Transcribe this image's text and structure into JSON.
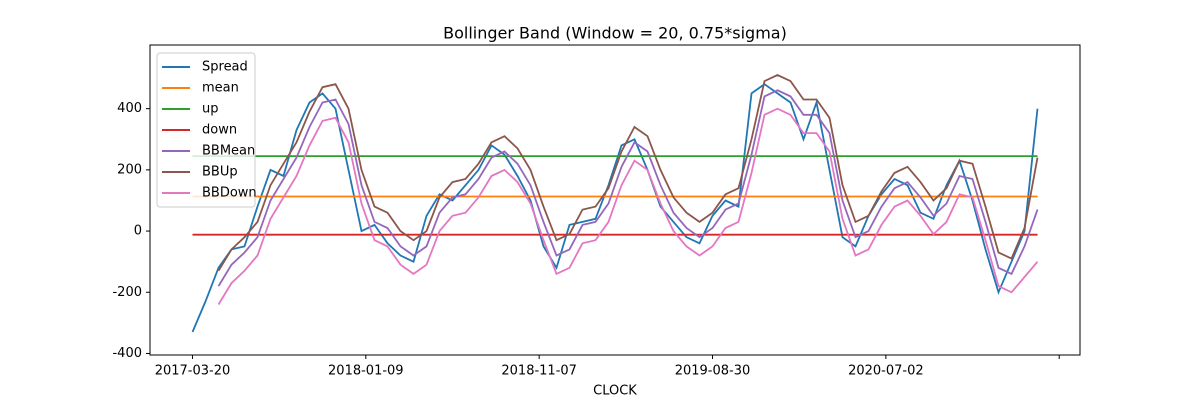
{
  "chart_data": {
    "type": "line",
    "title": "Bollinger Band (Window = 20, 0.75*sigma)",
    "xlabel": "CLOCK",
    "x": [
      0,
      15,
      30,
      45,
      60,
      75,
      90,
      105,
      120,
      135,
      150,
      165,
      180,
      195,
      210,
      225,
      240,
      255,
      270,
      285,
      300,
      315,
      330,
      345,
      360,
      375,
      390,
      405,
      420,
      435,
      450,
      465,
      480,
      495,
      510,
      525,
      540,
      555,
      570,
      585,
      600,
      615,
      630,
      645,
      660,
      675,
      690,
      705,
      720,
      735,
      750,
      765,
      780,
      795,
      810,
      825,
      840,
      855,
      870,
      885,
      900,
      915,
      930,
      945,
      960,
      975
    ],
    "xlim": [
      -49,
      1024
    ],
    "xticks": [
      {
        "value": 0,
        "label": "2017-03-20"
      },
      {
        "value": 200,
        "label": "2018-01-09"
      },
      {
        "value": 400,
        "label": "2018-11-07"
      },
      {
        "value": 600,
        "label": "2019-08-30"
      },
      {
        "value": 800,
        "label": "2020-07-02"
      },
      {
        "value": 1000,
        "label": null
      }
    ],
    "ylim": [
      -405,
      608
    ],
    "yticks": [
      -400,
      -200,
      0,
      200,
      400
    ],
    "legend": "upper left",
    "series": [
      {
        "name": "Spread",
        "color": "#1f77b4",
        "values": [
          -330,
          -230,
          -120,
          -60,
          -50,
          80,
          200,
          180,
          330,
          420,
          450,
          400,
          200,
          0,
          20,
          -40,
          -80,
          -100,
          50,
          120,
          100,
          150,
          200,
          280,
          250,
          180,
          100,
          -50,
          -120,
          20,
          30,
          40,
          150,
          280,
          300,
          200,
          80,
          30,
          -20,
          -40,
          50,
          100,
          80,
          450,
          480,
          450,
          420,
          300,
          420,
          200,
          -20,
          -50,
          50,
          120,
          170,
          150,
          60,
          40,
          150,
          230,
          100,
          -60,
          -200,
          -100,
          0,
          400
        ]
      },
      {
        "name": "mean",
        "color": "#ff7f0e",
        "x": [
          0,
          975
        ],
        "values": [
          113,
          113
        ]
      },
      {
        "name": "up",
        "color": "#2ca02c",
        "x": [
          0,
          975
        ],
        "values": [
          245,
          245
        ]
      },
      {
        "name": "down",
        "color": "#d62728",
        "x": [
          0,
          975
        ],
        "values": [
          -12,
          -12
        ]
      },
      {
        "name": "BBMean",
        "color": "#9467bd",
        "values": [
          null,
          null,
          -180,
          -110,
          -70,
          -20,
          100,
          170,
          240,
          340,
          420,
          430,
          350,
          150,
          30,
          10,
          -50,
          -80,
          -50,
          60,
          110,
          120,
          170,
          240,
          260,
          220,
          150,
          30,
          -80,
          -60,
          20,
          30,
          90,
          210,
          290,
          260,
          150,
          60,
          10,
          -20,
          10,
          70,
          90,
          250,
          440,
          460,
          440,
          380,
          380,
          320,
          100,
          -20,
          0,
          80,
          140,
          160,
          110,
          50,
          90,
          180,
          170,
          30,
          -120,
          -140,
          -50,
          70
        ]
      },
      {
        "name": "BBUp",
        "color": "#8c564b",
        "values": [
          null,
          null,
          -130,
          -60,
          -20,
          30,
          150,
          220,
          290,
          390,
          470,
          480,
          400,
          200,
          80,
          60,
          0,
          -30,
          0,
          110,
          160,
          170,
          220,
          290,
          310,
          270,
          200,
          80,
          -30,
          -10,
          70,
          80,
          140,
          260,
          340,
          310,
          200,
          110,
          60,
          30,
          60,
          120,
          140,
          300,
          490,
          510,
          490,
          430,
          430,
          370,
          150,
          30,
          50,
          130,
          190,
          210,
          160,
          100,
          140,
          230,
          220,
          80,
          -70,
          -90,
          10,
          240
        ]
      },
      {
        "name": "BBDown",
        "color": "#e377c2",
        "values": [
          null,
          null,
          -240,
          -170,
          -130,
          -80,
          40,
          110,
          180,
          280,
          360,
          370,
          290,
          90,
          -30,
          -50,
          -110,
          -140,
          -110,
          0,
          50,
          60,
          110,
          180,
          200,
          160,
          90,
          -30,
          -140,
          -120,
          -40,
          -30,
          30,
          150,
          230,
          200,
          90,
          0,
          -50,
          -80,
          -50,
          10,
          30,
          190,
          380,
          400,
          380,
          320,
          320,
          260,
          40,
          -80,
          -60,
          20,
          80,
          100,
          50,
          -10,
          30,
          120,
          110,
          -30,
          -180,
          -200,
          -150,
          -100
        ]
      }
    ]
  }
}
